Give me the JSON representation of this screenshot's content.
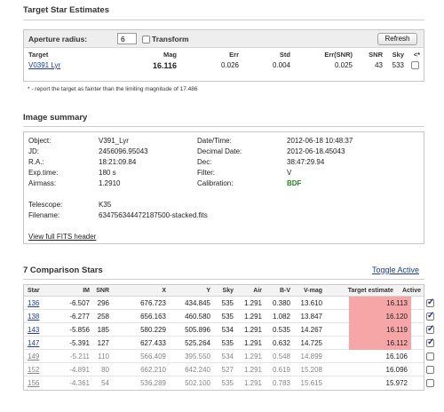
{
  "target_section": {
    "title": "Target Star Estimates",
    "aperture_label": "Aperture radius:",
    "aperture_value": "6",
    "transform_label": "Transform",
    "refresh_label": "Refresh",
    "headers": [
      "Target",
      "Mag",
      "Err",
      "Std",
      "Err(SNR)",
      "SNR",
      "Sky",
      "<*"
    ],
    "row": {
      "target": "V0391 Lyr",
      "mag": "16.116",
      "err": "0.026",
      "std": "0.004",
      "err_snr": "0.025",
      "snr": "43",
      "sky": "533",
      "fainter_checked": false
    },
    "footnote": "* - report the target as fainter than the limiting magnitude of 17.486"
  },
  "image_summary": {
    "title": "Image summary",
    "left": [
      {
        "label": "Object:",
        "value": "V391_Lyr"
      },
      {
        "label": "JD:",
        "value": "2456096.95043"
      },
      {
        "label": "R.A.:",
        "value": "18:21:09.84"
      },
      {
        "label": "Exp.time:",
        "value": "180 s"
      },
      {
        "label": "Airmass:",
        "value": "1.2910"
      }
    ],
    "right": [
      {
        "label": "Date/Time:",
        "value": "2012-06-18 10:48:37"
      },
      {
        "label": "Decimal Date:",
        "value": "2012-06-18.45043"
      },
      {
        "label": "Dec:",
        "value": "38:47:29.94"
      },
      {
        "label": "Filter:",
        "value": "V"
      },
      {
        "label": "Calibration:",
        "value": "BDF"
      }
    ],
    "telescope_label": "Telescope:",
    "telescope_value": "K35",
    "filename_label": "Filename:",
    "filename_value": "634756344472187500-stacked.fits",
    "fits_link": "View full FITS header"
  },
  "comparison": {
    "title": "7 Comparison Stars",
    "toggle_label": "Toggle Active",
    "headers": [
      "Star",
      "IM",
      "SNR",
      "X",
      "Y",
      "Sky",
      "Air",
      "B-V",
      "V-mag",
      "Target estimate",
      "Active"
    ],
    "highlight_color": "#f6a6a6",
    "rows": [
      {
        "star": "136",
        "im": "-6.507",
        "snr": "296",
        "x": "676.723",
        "y": "434.845",
        "sky": "535",
        "air": "1.291",
        "bv": "0.380",
        "vmag": "13.610",
        "est": "16.113",
        "active": true
      },
      {
        "star": "138",
        "im": "-6.277",
        "snr": "258",
        "x": "656.163",
        "y": "460.580",
        "sky": "535",
        "air": "1.291",
        "bv": "1.082",
        "vmag": "13.847",
        "est": "16.120",
        "active": true
      },
      {
        "star": "143",
        "im": "-5.856",
        "snr": "185",
        "x": "580.229",
        "y": "505.896",
        "sky": "534",
        "air": "1.291",
        "bv": "0.535",
        "vmag": "14.267",
        "est": "16.119",
        "active": true
      },
      {
        "star": "147",
        "im": "-5.391",
        "snr": "127",
        "x": "627.433",
        "y": "525.264",
        "sky": "535",
        "air": "1.291",
        "bv": "0.632",
        "vmag": "14.725",
        "est": "16.112",
        "active": true
      },
      {
        "star": "149",
        "im": "-5.211",
        "snr": "110",
        "x": "566.409",
        "y": "395.550",
        "sky": "534",
        "air": "1.291",
        "bv": "0.548",
        "vmag": "14.899",
        "est": "16.106",
        "active": false
      },
      {
        "star": "152",
        "im": "-4.891",
        "snr": "80",
        "x": "662.210",
        "y": "642.240",
        "sky": "527",
        "air": "1.291",
        "bv": "0.619",
        "vmag": "15.208",
        "est": "16.096",
        "active": false
      },
      {
        "star": "156",
        "im": "-4.361",
        "snr": "54",
        "x": "536.289",
        "y": "502.100",
        "sky": "535",
        "air": "1.291",
        "bv": "0.783",
        "vmag": "15.615",
        "est": "15.972",
        "active": false
      }
    ]
  }
}
